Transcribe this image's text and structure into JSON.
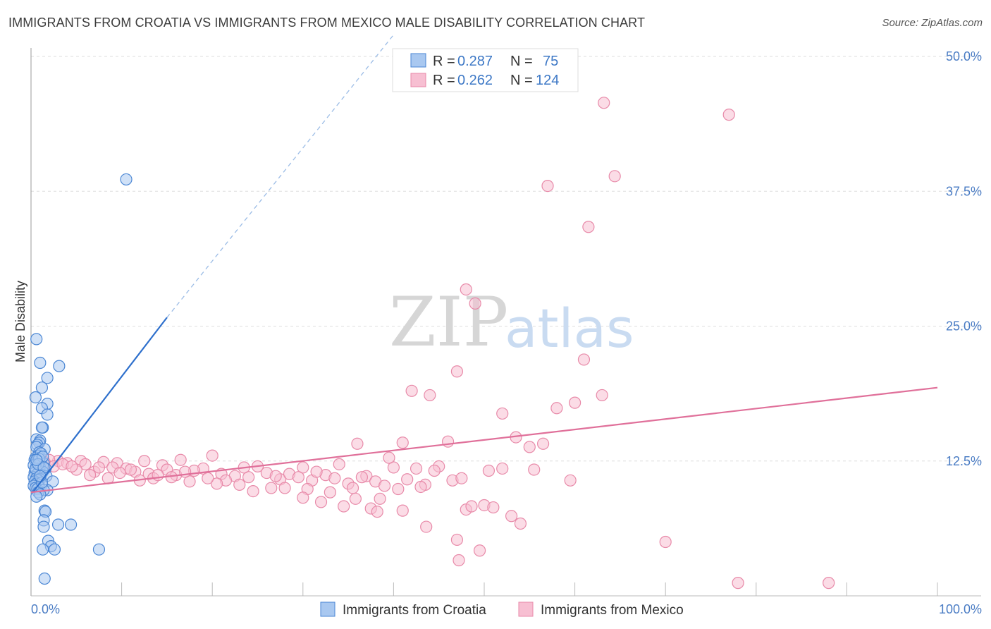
{
  "title": "IMMIGRANTS FROM CROATIA VS IMMIGRANTS FROM MEXICO MALE DISABILITY CORRELATION CHART",
  "source": "Source: ZipAtlas.com",
  "watermark": {
    "zip": "ZIP",
    "atlas": "atlas"
  },
  "colors": {
    "croatia_fill": "#a9c8f0",
    "croatia_stroke": "#4a86d4",
    "croatia_line": "#2d6fcc",
    "mexico_fill": "#f7bfd2",
    "mexico_stroke": "#e88aa9",
    "mexico_line": "#e0709a",
    "grid": "#dddddd",
    "tick_text": "#4a7cc4"
  },
  "legend": {
    "rows": [
      {
        "r_label": "R = ",
        "r_value": "0.287",
        "n_label": "N = ",
        "n_value": "75"
      },
      {
        "r_label": "R = ",
        "r_value": "0.262",
        "n_label": "N = ",
        "n_value": "124"
      }
    ]
  },
  "chart_data": {
    "type": "scatter",
    "title": "IMMIGRANTS FROM CROATIA VS IMMIGRANTS FROM MEXICO MALE DISABILITY CORRELATION CHART",
    "xlabel": "",
    "ylabel": "Male Disability",
    "xlim": [
      0,
      100
    ],
    "ylim": [
      0,
      50
    ],
    "x_tick_labels": [
      "0.0%",
      "100.0%"
    ],
    "y_ticks": [
      12.5,
      25.0,
      37.5,
      50.0
    ],
    "y_tick_labels": [
      "12.5%",
      "25.0%",
      "37.5%",
      "50.0%"
    ],
    "grid": true,
    "legend_position": "top-center",
    "series": [
      {
        "name": "Immigrants from Croatia",
        "R": 0.287,
        "N": 75,
        "trend": {
          "x0": 0.2,
          "y0": 9.6,
          "x1": 15.0,
          "y1": 25.8,
          "dash_to_x": 40.0,
          "dash_to_y": 52.0
        },
        "points": [
          [
            0.6,
            23.8
          ],
          [
            1.0,
            21.6
          ],
          [
            3.1,
            21.3
          ],
          [
            1.8,
            20.2
          ],
          [
            1.2,
            19.3
          ],
          [
            0.5,
            18.4
          ],
          [
            1.8,
            17.8
          ],
          [
            1.2,
            17.4
          ],
          [
            1.8,
            16.8
          ],
          [
            1.3,
            15.6
          ],
          [
            1.2,
            15.6
          ],
          [
            0.6,
            14.5
          ],
          [
            1.0,
            14.4
          ],
          [
            0.9,
            14.2
          ],
          [
            0.7,
            14.0
          ],
          [
            0.6,
            13.8
          ],
          [
            1.5,
            13.6
          ],
          [
            0.9,
            13.3
          ],
          [
            0.8,
            13.0
          ],
          [
            0.5,
            12.8
          ],
          [
            0.4,
            12.6
          ],
          [
            0.7,
            12.5
          ],
          [
            1.1,
            12.4
          ],
          [
            1.4,
            12.3
          ],
          [
            0.6,
            12.2
          ],
          [
            0.3,
            12.1
          ],
          [
            0.8,
            12.0
          ],
          [
            1.0,
            11.9
          ],
          [
            1.6,
            11.8
          ],
          [
            0.5,
            11.7
          ],
          [
            0.9,
            11.6
          ],
          [
            1.3,
            11.5
          ],
          [
            0.4,
            11.4
          ],
          [
            0.7,
            11.3
          ],
          [
            1.1,
            11.2
          ],
          [
            1.7,
            11.1
          ],
          [
            0.3,
            11.0
          ],
          [
            0.6,
            10.9
          ],
          [
            1.0,
            10.8
          ],
          [
            0.8,
            10.7
          ],
          [
            0.4,
            10.6
          ],
          [
            2.4,
            10.6
          ],
          [
            0.6,
            10.4
          ],
          [
            1.2,
            10.3
          ],
          [
            0.3,
            10.2
          ],
          [
            0.9,
            10.1
          ],
          [
            0.5,
            10.0
          ],
          [
            0.7,
            9.9
          ],
          [
            1.8,
            9.8
          ],
          [
            1.4,
            9.8
          ],
          [
            0.8,
            9.6
          ],
          [
            1.0,
            9.4
          ],
          [
            0.6,
            9.2
          ],
          [
            1.5,
            7.9
          ],
          [
            1.6,
            7.8
          ],
          [
            1.4,
            7.0
          ],
          [
            3.0,
            6.6
          ],
          [
            4.4,
            6.6
          ],
          [
            1.4,
            6.4
          ],
          [
            1.9,
            5.1
          ],
          [
            2.2,
            4.6
          ],
          [
            1.3,
            4.3
          ],
          [
            2.6,
            4.3
          ],
          [
            7.5,
            4.3
          ],
          [
            1.5,
            1.6
          ],
          [
            10.5,
            38.6
          ],
          [
            1.1,
            13.2
          ],
          [
            0.9,
            12.7
          ],
          [
            1.3,
            12.9
          ],
          [
            0.5,
            11.8
          ],
          [
            1.2,
            10.5
          ],
          [
            0.8,
            12.2
          ],
          [
            1.4,
            11.9
          ],
          [
            0.6,
            12.6
          ],
          [
            1.0,
            11.1
          ]
        ]
      },
      {
        "name": "Immigrants from Mexico",
        "R": 0.262,
        "N": 124,
        "trend": {
          "x0": 0.0,
          "y0": 9.6,
          "x1": 100.0,
          "y1": 19.3
        },
        "points": [
          [
            63.2,
            45.7
          ],
          [
            77.0,
            44.6
          ],
          [
            64.4,
            38.9
          ],
          [
            57.0,
            38.0
          ],
          [
            61.5,
            34.2
          ],
          [
            48.0,
            28.4
          ],
          [
            49.0,
            27.1
          ],
          [
            47.0,
            20.8
          ],
          [
            61.0,
            21.9
          ],
          [
            42.0,
            19.0
          ],
          [
            44.0,
            18.6
          ],
          [
            63.0,
            18.6
          ],
          [
            60.0,
            17.9
          ],
          [
            58.0,
            17.4
          ],
          [
            52.0,
            16.9
          ],
          [
            53.5,
            14.7
          ],
          [
            41.0,
            14.2
          ],
          [
            46.0,
            14.3
          ],
          [
            55.0,
            13.8
          ],
          [
            56.5,
            14.1
          ],
          [
            36.0,
            14.1
          ],
          [
            20.0,
            13.0
          ],
          [
            16.5,
            12.6
          ],
          [
            12.5,
            12.5
          ],
          [
            5.5,
            12.5
          ],
          [
            3.0,
            12.5
          ],
          [
            2.0,
            12.6
          ],
          [
            1.5,
            12.4
          ],
          [
            4.0,
            12.3
          ],
          [
            6.0,
            12.2
          ],
          [
            8.0,
            12.4
          ],
          [
            9.5,
            12.3
          ],
          [
            14.5,
            12.1
          ],
          [
            19.0,
            11.8
          ],
          [
            25.0,
            12.0
          ],
          [
            30.0,
            11.9
          ],
          [
            34.0,
            12.2
          ],
          [
            40.0,
            11.9
          ],
          [
            42.5,
            11.8
          ],
          [
            45.0,
            12.0
          ],
          [
            50.5,
            11.6
          ],
          [
            55.5,
            11.7
          ],
          [
            59.5,
            10.7
          ],
          [
            2.5,
            12.0
          ],
          [
            3.5,
            12.2
          ],
          [
            5.0,
            11.7
          ],
          [
            7.0,
            11.5
          ],
          [
            9.0,
            11.9
          ],
          [
            10.5,
            11.8
          ],
          [
            11.5,
            11.5
          ],
          [
            13.0,
            11.3
          ],
          [
            15.0,
            11.7
          ],
          [
            16.0,
            11.2
          ],
          [
            18.0,
            11.6
          ],
          [
            21.0,
            11.3
          ],
          [
            22.5,
            11.1
          ],
          [
            24.0,
            11.0
          ],
          [
            26.0,
            11.4
          ],
          [
            27.5,
            10.8
          ],
          [
            28.5,
            11.3
          ],
          [
            29.5,
            11.0
          ],
          [
            31.0,
            10.7
          ],
          [
            32.5,
            11.2
          ],
          [
            33.5,
            10.9
          ],
          [
            35.0,
            10.4
          ],
          [
            37.0,
            11.1
          ],
          [
            38.0,
            10.6
          ],
          [
            39.0,
            10.2
          ],
          [
            41.5,
            10.8
          ],
          [
            43.5,
            10.3
          ],
          [
            44.5,
            11.6
          ],
          [
            46.5,
            10.7
          ],
          [
            47.5,
            10.9
          ],
          [
            6.5,
            11.2
          ],
          [
            8.5,
            10.9
          ],
          [
            12.0,
            10.7
          ],
          [
            17.5,
            10.6
          ],
          [
            21.5,
            10.7
          ],
          [
            23.0,
            10.3
          ],
          [
            26.5,
            10.0
          ],
          [
            30.5,
            9.9
          ],
          [
            33.0,
            9.6
          ],
          [
            35.5,
            10.0
          ],
          [
            38.5,
            9.0
          ],
          [
            40.5,
            9.9
          ],
          [
            43.0,
            10.1
          ],
          [
            13.5,
            10.9
          ],
          [
            15.5,
            11.0
          ],
          [
            20.5,
            10.4
          ],
          [
            24.5,
            9.7
          ],
          [
            28.0,
            10.0
          ],
          [
            30.0,
            9.1
          ],
          [
            32.0,
            8.7
          ],
          [
            34.5,
            8.3
          ],
          [
            35.8,
            9.0
          ],
          [
            37.5,
            8.1
          ],
          [
            38.2,
            7.8
          ],
          [
            41.0,
            7.9
          ],
          [
            43.6,
            6.4
          ],
          [
            48.0,
            8.0
          ],
          [
            48.6,
            8.3
          ],
          [
            50.0,
            8.4
          ],
          [
            51.0,
            8.2
          ],
          [
            53.0,
            7.4
          ],
          [
            54.0,
            6.7
          ],
          [
            47.0,
            5.2
          ],
          [
            49.5,
            4.2
          ],
          [
            47.2,
            3.3
          ],
          [
            70.0,
            5.0
          ],
          [
            78.0,
            1.2
          ],
          [
            88.0,
            1.2
          ],
          [
            11.0,
            11.7
          ],
          [
            7.5,
            11.9
          ],
          [
            17.0,
            11.5
          ],
          [
            19.5,
            10.9
          ],
          [
            23.5,
            11.9
          ],
          [
            31.5,
            11.5
          ],
          [
            36.5,
            11.0
          ],
          [
            4.5,
            12.0
          ],
          [
            9.8,
            11.4
          ],
          [
            14.0,
            11.2
          ],
          [
            27.0,
            11.1
          ],
          [
            39.5,
            12.8
          ],
          [
            52.0,
            11.8
          ]
        ]
      }
    ]
  },
  "bottom_legend": {
    "croatia_label": "Immigrants from Croatia",
    "mexico_label": "Immigrants from Mexico"
  }
}
